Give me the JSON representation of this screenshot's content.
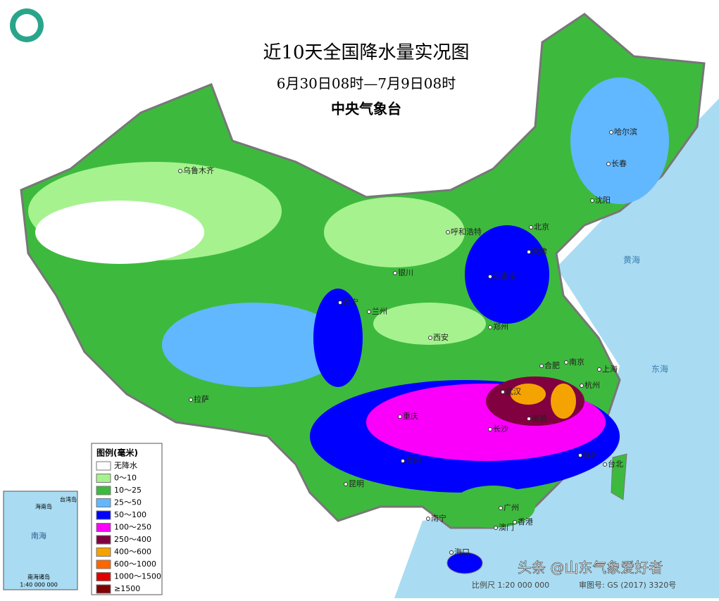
{
  "header": {
    "title": "近10天全国降水量实况图",
    "subtitle": "6月30日08时—7月9日08时",
    "agency": "中央气象台"
  },
  "legend": {
    "title": "图例(毫米)",
    "items": [
      {
        "label": "无降水",
        "color": "#ffffff"
      },
      {
        "label": "0～10",
        "color": "#a6f28f"
      },
      {
        "label": "10～25",
        "color": "#3dba3d"
      },
      {
        "label": "25～50",
        "color": "#61b8ff"
      },
      {
        "label": "50～100",
        "color": "#0000ff"
      },
      {
        "label": "100～250",
        "color": "#fa00fa"
      },
      {
        "label": "250～400",
        "color": "#800040"
      },
      {
        "label": "400～600",
        "color": "#f5a300"
      },
      {
        "label": "600～1000",
        "color": "#ff6600"
      },
      {
        "label": "1000～1500",
        "color": "#e00000"
      },
      {
        "label": "≥1500",
        "color": "#800000"
      }
    ]
  },
  "cities": [
    "乌鲁木齐",
    "哈尔滨",
    "长春",
    "沈阳",
    "北京",
    "天津",
    "呼和浩特",
    "石家庄",
    "银川",
    "西宁",
    "兰州",
    "郑州",
    "西安",
    "拉萨",
    "合肥",
    "南京",
    "上海",
    "杭州",
    "武汉",
    "南昌",
    "重庆",
    "长沙",
    "贵阳",
    "福州",
    "台北",
    "昆明",
    "南宁",
    "广州",
    "香港",
    "澳门",
    "海口"
  ],
  "seas": [
    "黄海",
    "东海",
    "南海"
  ],
  "inset": {
    "title": "南海诸岛",
    "scale": "1:40 000 000",
    "labels": [
      "南海",
      "海南岛",
      "台湾岛"
    ]
  },
  "footer": {
    "scale": "比例尺 1:20 000 000",
    "approval": "审图号: GS (2017) 3320号"
  },
  "watermark": "头条 @山东气象爱好者"
}
